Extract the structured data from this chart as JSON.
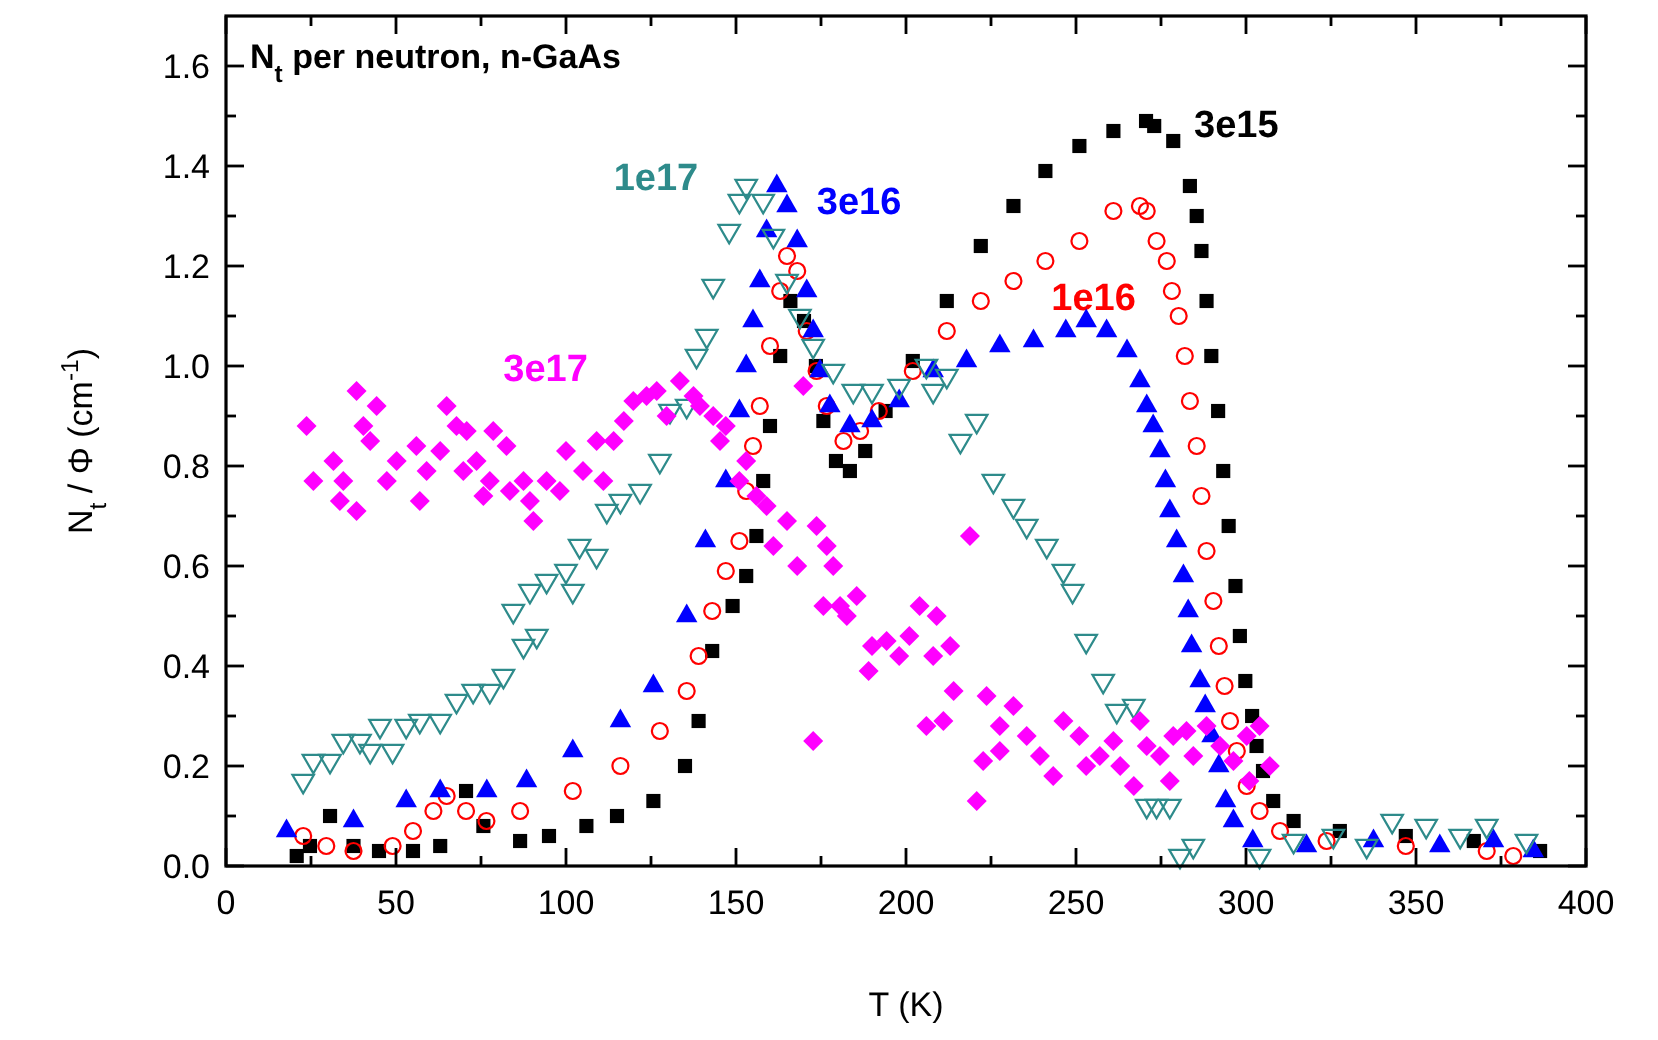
{
  "chart_data": {
    "type": "scatter",
    "title": "N$_{t}$ per neutron, n-GaAs",
    "xlabel": "T (K)",
    "ylabel": "N$_{t}$ / Φ (cm$^{-1}$)",
    "xlim": [
      0,
      400
    ],
    "ylim": [
      0,
      1.7
    ],
    "xticks": [
      0,
      {
        "value": 25,
        "label": null
      },
      50,
      {
        "value": 75,
        "label": null
      },
      100,
      {
        "value": 125,
        "label": null
      },
      150,
      {
        "value": 175,
        "label": null
      },
      200,
      {
        "value": 225,
        "label": null
      },
      250,
      {
        "value": 275,
        "label": null
      },
      300,
      {
        "value": 325,
        "label": null
      },
      350,
      {
        "value": 375,
        "label": null
      },
      400
    ],
    "yticks": [
      {
        "value": 0,
        "label": "0.0"
      },
      {
        "value": 0.1,
        "label": null
      },
      0.2,
      {
        "value": 0.3,
        "label": null
      },
      0.4,
      {
        "value": 0.5,
        "label": null
      },
      0.6,
      {
        "value": 0.7,
        "label": null
      },
      0.8,
      {
        "value": 0.9,
        "label": null
      },
      {
        "value": 1,
        "label": "1.0"
      },
      {
        "value": 1.1,
        "label": null
      },
      1.2,
      {
        "value": 1.3,
        "label": null
      },
      1.4,
      {
        "value": 1.5,
        "label": null
      },
      1.6
    ],
    "grid": false,
    "series": [
      {
        "name": "3e15",
        "color": "#000000",
        "marker": "square",
        "x": [
          20.8,
          24.7,
          30.6,
          37.5,
          45,
          55,
          63,
          70.6,
          75.7,
          86.5,
          95,
          106,
          115,
          125.7,
          135,
          139,
          143,
          149,
          153,
          156,
          158,
          160,
          163,
          166,
          170,
          173.5,
          175.7,
          179.4,
          183.5,
          188,
          194,
          202,
          212,
          222,
          231.6,
          241,
          251,
          261,
          270.6,
          273,
          278.6,
          283.5,
          285.5,
          286.9,
          288.4,
          289.8,
          291.8,
          293.3,
          294.9,
          296.9,
          298.2,
          299.8,
          301.8,
          303.1,
          305,
          308,
          314,
          327.6,
          347,
          367,
          386.5
        ],
        "values": [
          0.02,
          0.04,
          0.1,
          0.04,
          0.03,
          0.03,
          0.04,
          0.15,
          0.08,
          0.05,
          0.06,
          0.08,
          0.1,
          0.13,
          0.2,
          0.29,
          0.43,
          0.52,
          0.58,
          0.66,
          0.77,
          0.88,
          1.02,
          1.13,
          1.09,
          1.0,
          0.89,
          0.81,
          0.79,
          0.83,
          0.91,
          1.01,
          1.13,
          1.24,
          1.32,
          1.39,
          1.44,
          1.47,
          1.49,
          1.48,
          1.45,
          1.36,
          1.3,
          1.23,
          1.13,
          1.02,
          0.91,
          0.79,
          0.68,
          0.56,
          0.46,
          0.37,
          0.3,
          0.24,
          0.19,
          0.13,
          0.09,
          0.07,
          0.06,
          0.05,
          0.03
        ]
      },
      {
        "name": "1e16",
        "color": "#ff0000",
        "marker": "circle-open",
        "x": [
          22.7,
          29.5,
          37.5,
          49,
          55,
          61,
          64.9,
          70.6,
          76.6,
          86.5,
          102,
          116,
          127.6,
          135.5,
          139,
          143,
          147,
          151,
          153,
          155,
          157,
          160,
          163,
          165,
          168,
          170.8,
          173.7,
          176.7,
          181.6,
          186.5,
          192,
          202,
          212,
          222,
          231.6,
          241,
          251,
          261,
          268.8,
          270.8,
          273.7,
          276.7,
          278.2,
          280.2,
          282,
          283.5,
          285.5,
          286.9,
          288.4,
          290.4,
          292,
          293.7,
          295.3,
          297.3,
          300.2,
          304,
          310,
          323.7,
          347,
          370.8,
          378.6
        ],
        "values": [
          0.06,
          0.04,
          0.03,
          0.04,
          0.07,
          0.11,
          0.14,
          0.11,
          0.09,
          0.11,
          0.15,
          0.2,
          0.27,
          0.35,
          0.42,
          0.51,
          0.59,
          0.65,
          0.75,
          0.84,
          0.92,
          1.04,
          1.15,
          1.22,
          1.19,
          1.07,
          0.99,
          0.92,
          0.85,
          0.87,
          0.91,
          0.99,
          1.07,
          1.13,
          1.17,
          1.21,
          1.25,
          1.31,
          1.32,
          1.31,
          1.25,
          1.21,
          1.15,
          1.1,
          1.02,
          0.93,
          0.84,
          0.74,
          0.63,
          0.53,
          0.44,
          0.36,
          0.29,
          0.23,
          0.16,
          0.11,
          0.07,
          0.05,
          0.04,
          0.03,
          0.02
        ]
      },
      {
        "name": "3e16",
        "color": "#0000ff",
        "marker": "triangle",
        "x": [
          17.8,
          37.5,
          53,
          63,
          76.7,
          88.4,
          102,
          116,
          125.7,
          135.5,
          141,
          147,
          151,
          153,
          155,
          157,
          159,
          162,
          165,
          168,
          170.8,
          172.7,
          174.7,
          177.6,
          183.5,
          190,
          198,
          208,
          217.8,
          227.6,
          237.5,
          247,
          253,
          259,
          265,
          268.8,
          270.8,
          272.7,
          274.7,
          276.3,
          277.6,
          279.6,
          281.6,
          283,
          284,
          286.5,
          288,
          290,
          292,
          294,
          296.3,
          302,
          317.8,
          337.5,
          357,
          372.8,
          384.5
        ],
        "values": [
          0.07,
          0.09,
          0.13,
          0.15,
          0.15,
          0.17,
          0.23,
          0.29,
          0.36,
          0.5,
          0.65,
          0.77,
          0.91,
          1.0,
          1.09,
          1.17,
          1.27,
          1.36,
          1.32,
          1.25,
          1.15,
          1.07,
          0.99,
          0.92,
          0.88,
          0.89,
          0.93,
          0.99,
          1.01,
          1.04,
          1.05,
          1.07,
          1.09,
          1.07,
          1.03,
          0.97,
          0.92,
          0.88,
          0.83,
          0.77,
          0.71,
          0.65,
          0.58,
          0.51,
          0.44,
          0.37,
          0.32,
          0.26,
          0.2,
          0.13,
          0.09,
          0.05,
          0.04,
          0.05,
          0.04,
          0.05,
          0.03
        ]
      },
      {
        "name": "1e17",
        "color": "#2e8b8b",
        "marker": "triangle-down-open",
        "x": [
          22.7,
          25.7,
          30.6,
          34.5,
          39.4,
          42.4,
          45.3,
          49,
          53,
          57,
          63,
          67.8,
          72.7,
          77.6,
          81.6,
          84.5,
          87.5,
          89.4,
          91.4,
          94.3,
          100,
          102,
          104,
          109,
          112,
          116,
          121.8,
          127.6,
          130.6,
          135.5,
          138.4,
          141.4,
          143.3,
          148,
          151,
          153,
          158,
          161,
          165,
          168.8,
          172.7,
          178.6,
          184.5,
          190,
          198,
          206,
          208,
          212,
          216,
          220.8,
          225.7,
          231.6,
          235.5,
          241.4,
          246.3,
          249,
          253,
          258,
          262,
          267,
          270.8,
          273.7,
          277.6,
          280.6,
          284.5,
          304,
          314,
          325.7,
          335.5,
          343,
          353,
          363,
          370.8,
          382.5
        ],
        "values": [
          0.17,
          0.21,
          0.21,
          0.25,
          0.25,
          0.23,
          0.28,
          0.23,
          0.28,
          0.29,
          0.29,
          0.33,
          0.35,
          0.35,
          0.38,
          0.51,
          0.44,
          0.55,
          0.46,
          0.57,
          0.59,
          0.55,
          0.64,
          0.62,
          0.71,
          0.73,
          0.75,
          0.81,
          0.91,
          0.92,
          1.02,
          1.06,
          1.16,
          1.27,
          1.33,
          1.36,
          1.33,
          1.26,
          1.17,
          1.1,
          1.04,
          0.99,
          0.95,
          0.95,
          0.96,
          1.0,
          0.95,
          0.98,
          0.85,
          0.89,
          0.77,
          0.72,
          0.68,
          0.64,
          0.59,
          0.55,
          0.45,
          0.37,
          0.31,
          0.32,
          0.12,
          0.12,
          0.12,
          0.02,
          0.04,
          0.02,
          0.05,
          0.06,
          0.04,
          0.09,
          0.08,
          0.06,
          0.08,
          0.05
        ]
      },
      {
        "name": "3e17",
        "color": "#ff00ff",
        "marker": "diamond",
        "x": [
          23.7,
          25.7,
          31.6,
          33.5,
          34.5,
          38.4,
          38.4,
          40.4,
          42.4,
          44.3,
          47.3,
          50.2,
          56,
          57,
          59,
          63,
          64.9,
          67.8,
          69.8,
          70.8,
          73.7,
          75.7,
          77.6,
          78.6,
          82.5,
          83.5,
          87.5,
          89.4,
          90.4,
          94.3,
          98.2,
          100,
          105,
          109,
          111,
          114,
          117,
          119.8,
          123.7,
          126.7,
          129.6,
          133.5,
          137.5,
          139.4,
          143.3,
          145.3,
          147,
          151,
          153,
          156,
          159,
          161,
          165,
          168,
          169.8,
          172.7,
          173.7,
          175.7,
          176.7,
          178.6,
          180.6,
          182.6,
          185.5,
          189,
          190,
          194.3,
          198,
          201,
          204,
          206,
          208,
          209,
          211,
          213,
          214,
          218.8,
          220.8,
          222.7,
          223.7,
          227.6,
          227.6,
          231.6,
          235.5,
          239.4,
          243.3,
          246.3,
          251,
          253,
          257,
          261,
          263,
          267,
          268.8,
          270.8,
          274.7,
          277.6,
          278.6,
          282.5,
          284.5,
          288.4,
          292.4,
          296.3,
          300.2,
          301,
          304,
          307
        ],
        "values": [
          0.88,
          0.77,
          0.81,
          0.73,
          0.77,
          0.95,
          0.71,
          0.88,
          0.85,
          0.92,
          0.77,
          0.81,
          0.84,
          0.73,
          0.79,
          0.83,
          0.92,
          0.88,
          0.79,
          0.87,
          0.81,
          0.74,
          0.77,
          0.87,
          0.84,
          0.75,
          0.77,
          0.73,
          0.69,
          0.77,
          0.75,
          0.83,
          0.79,
          0.85,
          0.77,
          0.85,
          0.89,
          0.93,
          0.94,
          0.95,
          0.9,
          0.97,
          0.94,
          0.92,
          0.9,
          0.85,
          0.88,
          0.77,
          0.81,
          0.74,
          0.72,
          0.64,
          0.69,
          0.6,
          0.96,
          0.25,
          0.68,
          0.52,
          0.64,
          0.6,
          0.52,
          0.5,
          0.54,
          0.39,
          0.44,
          0.45,
          0.42,
          0.46,
          0.52,
          0.28,
          0.42,
          0.5,
          0.29,
          0.44,
          0.35,
          0.66,
          0.13,
          0.21,
          0.34,
          0.28,
          0.23,
          0.32,
          0.26,
          0.22,
          0.18,
          0.29,
          0.26,
          0.2,
          0.22,
          0.25,
          0.2,
          0.16,
          0.29,
          0.24,
          0.22,
          0.17,
          0.26,
          0.27,
          0.22,
          0.28,
          0.24,
          0.21,
          0.26,
          0.17,
          0.28,
          0.2
        ]
      }
    ]
  }
}
